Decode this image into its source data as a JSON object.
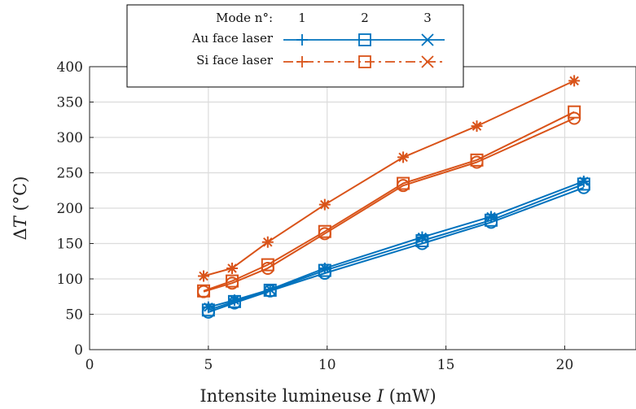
{
  "chart_data": {
    "type": "line",
    "xlabel": "Intensite lumineuse I (mW)",
    "xlabel_parts": {
      "before": "Intensite lumineuse ",
      "var": "I",
      "after": " (mW)"
    },
    "ylabel": "ΔT (°C)",
    "ylabel_parts": {
      "delta": "Δ",
      "var": "T",
      "after": " (°C)"
    },
    "xlim": [
      0,
      23
    ],
    "ylim": [
      0,
      400
    ],
    "xticks": [
      0,
      5,
      10,
      15,
      20
    ],
    "yticks": [
      0,
      50,
      100,
      150,
      200,
      250,
      300,
      350,
      400
    ],
    "grid": true,
    "legend_position": "top-center",
    "legend": {
      "header_label": "Mode n°:",
      "mode_numbers": [
        "1",
        "2",
        "3"
      ],
      "rows": [
        "Au face laser",
        "Si face laser"
      ],
      "marker_names": [
        "plus",
        "square",
        "cross"
      ]
    },
    "colors": {
      "blue": "#0072BD",
      "orange": "#D95319"
    },
    "series": [
      {
        "group": "Au face laser",
        "color": "#0072BD",
        "marker": "circle",
        "points": [
          [
            5.0,
            53
          ],
          [
            6.1,
            66
          ],
          [
            7.6,
            83
          ],
          [
            9.9,
            108
          ],
          [
            14.0,
            150
          ],
          [
            16.9,
            180
          ],
          [
            20.8,
            229
          ]
        ]
      },
      {
        "group": "Au face laser",
        "color": "#0072BD",
        "marker": "square",
        "points": [
          [
            5.0,
            56
          ],
          [
            6.1,
            68
          ],
          [
            7.6,
            84
          ],
          [
            9.9,
            112
          ],
          [
            14.0,
            154
          ],
          [
            16.9,
            183
          ],
          [
            20.8,
            234
          ]
        ]
      },
      {
        "group": "Au face laser",
        "color": "#0072BD",
        "marker": "asterisk",
        "points": [
          [
            5.0,
            60
          ],
          [
            6.1,
            70
          ],
          [
            7.6,
            85
          ],
          [
            9.9,
            115
          ],
          [
            14.0,
            159
          ],
          [
            16.9,
            188
          ],
          [
            20.8,
            238
          ]
        ]
      },
      {
        "group": "Si face laser",
        "color": "#D95319",
        "marker": "circle",
        "points": [
          [
            4.8,
            82
          ],
          [
            6.0,
            94
          ],
          [
            7.5,
            115
          ],
          [
            9.9,
            164
          ],
          [
            13.2,
            232
          ],
          [
            16.3,
            265
          ],
          [
            20.4,
            327
          ]
        ]
      },
      {
        "group": "Si face laser",
        "color": "#D95319",
        "marker": "square",
        "points": [
          [
            4.8,
            83
          ],
          [
            6.0,
            97
          ],
          [
            7.5,
            120
          ],
          [
            9.9,
            167
          ],
          [
            13.2,
            235
          ],
          [
            16.3,
            268
          ],
          [
            20.4,
            336
          ]
        ]
      },
      {
        "group": "Si face laser",
        "color": "#D95319",
        "marker": "asterisk",
        "points": [
          [
            4.8,
            104
          ],
          [
            6.0,
            115
          ],
          [
            7.5,
            152
          ],
          [
            9.9,
            205
          ],
          [
            13.2,
            272
          ],
          [
            16.3,
            316
          ],
          [
            20.4,
            380
          ]
        ]
      }
    ]
  }
}
